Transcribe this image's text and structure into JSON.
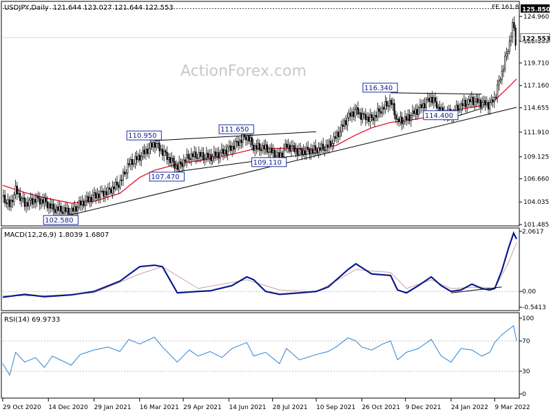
{
  "header": {
    "symbol": "USDJPY,Daily",
    "ohlc": "121.644 123.027 121.644 122.553",
    "fe_label": "FE 161.8"
  },
  "watermark": "ActionForex.com",
  "colors": {
    "candles": "#000000",
    "ma": "#e0102a",
    "macd": "#0a1a8c",
    "signal": "#c8a0a0",
    "rsi": "#2a80d0",
    "box_border": "#1a2a9c",
    "grid": "#808080"
  },
  "chart_data": [
    {
      "type": "candlestick",
      "title": "USDJPY,Daily",
      "yticks": [
        "124.960",
        "122.180",
        "119.710",
        "117.160",
        "114.655",
        "111.910",
        "109.125",
        "106.660",
        "104.035",
        "101.485"
      ],
      "ylim": [
        101.485,
        126.5
      ],
      "current_price": "122.553",
      "fe_level": "125.850",
      "xticks": [
        "29 Oct 2020",
        "14 Dec 2020",
        "29 Jan 2021",
        "16 Mar 2021",
        "29 Apr 2021",
        "14 Jun 2021",
        "28 Jul 2021",
        "10 Sep 2021",
        "26 Oct 2021",
        "9 Dec 2021",
        "24 Jan 2022",
        "9 Mar 2022"
      ],
      "annotations": [
        {
          "label": "102.580",
          "x": "2021-01-06",
          "y": 102.58
        },
        {
          "label": "110.950",
          "x": "2021-03-31",
          "y": 110.95
        },
        {
          "label": "107.470",
          "x": "2021-04-23",
          "y": 107.47
        },
        {
          "label": "111.650",
          "x": "2021-07-02",
          "y": 111.65
        },
        {
          "label": "109.110",
          "x": "2021-08-04",
          "y": 109.11
        },
        {
          "label": "116.340",
          "x": "2021-11-24",
          "y": 116.34
        },
        {
          "label": "114.400",
          "x": "2022-01-24",
          "y": 114.4
        }
      ],
      "close_path": [
        [
          "2020-10-29",
          104.6
        ],
        [
          "2020-11-05",
          103.6
        ],
        [
          "2020-11-11",
          105.4
        ],
        [
          "2020-11-20",
          103.8
        ],
        [
          "2020-12-01",
          104.3
        ],
        [
          "2020-12-10",
          104.1
        ],
        [
          "2020-12-18",
          103.3
        ],
        [
          "2021-01-06",
          102.9
        ],
        [
          "2021-01-15",
          103.8
        ],
        [
          "2021-01-29",
          104.7
        ],
        [
          "2021-02-12",
          105.2
        ],
        [
          "2021-02-24",
          106.2
        ],
        [
          "2021-03-05",
          108.3
        ],
        [
          "2021-03-16",
          109.1
        ],
        [
          "2021-03-31",
          110.7
        ],
        [
          "2021-04-08",
          109.7
        ],
        [
          "2021-04-23",
          107.9
        ],
        [
          "2021-05-05",
          109.2
        ],
        [
          "2021-05-14",
          109.3
        ],
        [
          "2021-05-26",
          109.1
        ],
        [
          "2021-06-07",
          109.6
        ],
        [
          "2021-06-17",
          110.2
        ],
        [
          "2021-07-02",
          111.5
        ],
        [
          "2021-07-09",
          110.2
        ],
        [
          "2021-07-21",
          110.1
        ],
        [
          "2021-08-04",
          109.1
        ],
        [
          "2021-08-11",
          110.4
        ],
        [
          "2021-08-24",
          109.7
        ],
        [
          "2021-09-10",
          109.9
        ],
        [
          "2021-09-22",
          110.3
        ],
        [
          "2021-09-30",
          111.4
        ],
        [
          "2021-10-12",
          113.6
        ],
        [
          "2021-10-20",
          114.4
        ],
        [
          "2021-10-26",
          113.7
        ],
        [
          "2021-11-05",
          113.4
        ],
        [
          "2021-11-16",
          114.6
        ],
        [
          "2021-11-24",
          115.4
        ],
        [
          "2021-12-01",
          113.1
        ],
        [
          "2021-12-10",
          113.4
        ],
        [
          "2021-12-22",
          114.5
        ],
        [
          "2022-01-04",
          115.8
        ],
        [
          "2022-01-14",
          114.2
        ],
        [
          "2022-01-24",
          113.9
        ],
        [
          "2022-02-03",
          114.9
        ],
        [
          "2022-02-14",
          115.5
        ],
        [
          "2022-02-24",
          115.2
        ],
        [
          "2022-03-04",
          115.0
        ],
        [
          "2022-03-09",
          115.8
        ],
        [
          "2022-03-16",
          118.6
        ],
        [
          "2022-03-23",
          121.6
        ],
        [
          "2022-03-28",
          124.3
        ],
        [
          "2022-03-30",
          122.0
        ],
        [
          "2022-03-31",
          122.5
        ]
      ],
      "ma_path": [
        [
          "2020-10-29",
          105.9
        ],
        [
          "2020-11-20",
          105.1
        ],
        [
          "2020-12-10",
          104.5
        ],
        [
          "2021-01-06",
          103.9
        ],
        [
          "2021-01-29",
          104.1
        ],
        [
          "2021-02-24",
          105.0
        ],
        [
          "2021-03-16",
          106.8
        ],
        [
          "2021-03-31",
          107.6
        ],
        [
          "2021-04-23",
          108.3
        ],
        [
          "2021-05-26",
          108.9
        ],
        [
          "2021-06-17",
          109.4
        ],
        [
          "2021-07-09",
          110.0
        ],
        [
          "2021-08-11",
          110.1
        ],
        [
          "2021-09-10",
          110.0
        ],
        [
          "2021-09-30",
          110.4
        ],
        [
          "2021-10-20",
          111.6
        ],
        [
          "2021-11-05",
          112.4
        ],
        [
          "2021-11-24",
          113.0
        ],
        [
          "2021-12-22",
          113.4
        ],
        [
          "2022-01-24",
          114.3
        ],
        [
          "2022-02-24",
          114.9
        ],
        [
          "2022-03-09",
          115.5
        ],
        [
          "2022-03-23",
          117.0
        ],
        [
          "2022-03-31",
          117.9
        ]
      ],
      "trendlines": [
        {
          "name": "lower-support",
          "from": [
            "2021-01-06",
            102.58
          ],
          "to": [
            "2022-03-31",
            114.7
          ]
        },
        {
          "name": "upper-wedge",
          "from": [
            "2021-03-31",
            110.95
          ],
          "to": [
            "2021-09-10",
            111.95
          ]
        },
        {
          "name": "lower-wedge",
          "from": [
            "2021-04-23",
            107.47
          ],
          "to": [
            "2021-09-10",
            109.55
          ]
        },
        {
          "name": "triangle-top",
          "from": [
            "2021-11-24",
            116.34
          ],
          "to": [
            "2022-02-24",
            116.2
          ]
        },
        {
          "name": "triangle-bottom",
          "from": [
            "2022-01-24",
            113.5
          ],
          "to": [
            "2022-02-24",
            114.6
          ]
        }
      ]
    },
    {
      "type": "line",
      "title": "MACD(12,26,9) 1.8039 1.6807",
      "yticks": [
        "2.0617",
        "0.00",
        "-0.5413"
      ],
      "ylim": [
        -0.5413,
        2.0617
      ],
      "series": [
        {
          "name": "MACD",
          "values": [
            [
              "2020-10-29",
              -0.2
            ],
            [
              "2020-11-20",
              -0.1
            ],
            [
              "2020-12-10",
              -0.18
            ],
            [
              "2021-01-06",
              -0.12
            ],
            [
              "2021-01-29",
              0.0
            ],
            [
              "2021-02-24",
              0.35
            ],
            [
              "2021-03-16",
              0.85
            ],
            [
              "2021-03-31",
              0.9
            ],
            [
              "2021-04-08",
              0.85
            ],
            [
              "2021-04-23",
              -0.05
            ],
            [
              "2021-05-14",
              0.0
            ],
            [
              "2021-05-26",
              0.02
            ],
            [
              "2021-06-17",
              0.2
            ],
            [
              "2021-07-02",
              0.5
            ],
            [
              "2021-07-09",
              0.4
            ],
            [
              "2021-07-21",
              0.0
            ],
            [
              "2021-08-04",
              -0.1
            ],
            [
              "2021-08-24",
              -0.05
            ],
            [
              "2021-09-10",
              0.0
            ],
            [
              "2021-09-22",
              0.15
            ],
            [
              "2021-10-12",
              0.75
            ],
            [
              "2021-10-20",
              0.95
            ],
            [
              "2021-11-05",
              0.6
            ],
            [
              "2021-11-24",
              0.55
            ],
            [
              "2021-12-01",
              0.05
            ],
            [
              "2021-12-10",
              -0.05
            ],
            [
              "2021-12-22",
              0.2
            ],
            [
              "2022-01-04",
              0.5
            ],
            [
              "2022-01-14",
              0.2
            ],
            [
              "2022-01-24",
              0.0
            ],
            [
              "2022-02-03",
              0.05
            ],
            [
              "2022-02-14",
              0.25
            ],
            [
              "2022-02-24",
              0.1
            ],
            [
              "2022-03-04",
              0.05
            ],
            [
              "2022-03-09",
              0.1
            ],
            [
              "2022-03-16",
              0.7
            ],
            [
              "2022-03-23",
              1.5
            ],
            [
              "2022-03-28",
              2.0
            ],
            [
              "2022-03-31",
              1.8
            ]
          ]
        },
        {
          "name": "Signal",
          "values": [
            [
              "2020-10-29",
              -0.15
            ],
            [
              "2020-12-10",
              -0.15
            ],
            [
              "2021-01-29",
              -0.05
            ],
            [
              "2021-03-16",
              0.6
            ],
            [
              "2021-04-08",
              0.85
            ],
            [
              "2021-05-14",
              0.1
            ],
            [
              "2021-07-02",
              0.4
            ],
            [
              "2021-08-04",
              0.05
            ],
            [
              "2021-09-10",
              -0.02
            ],
            [
              "2021-10-20",
              0.75
            ],
            [
              "2021-11-24",
              0.65
            ],
            [
              "2021-12-10",
              0.1
            ],
            [
              "2022-01-04",
              0.4
            ],
            [
              "2022-01-24",
              0.1
            ],
            [
              "2022-02-24",
              0.15
            ],
            [
              "2022-03-09",
              0.1
            ],
            [
              "2022-03-23",
              1.0
            ],
            [
              "2022-03-31",
              1.68
            ]
          ]
        }
      ],
      "trendline": {
        "from": [
          "2022-01-24",
          -0.05
        ],
        "to": [
          "2022-03-16",
          0.15
        ]
      }
    },
    {
      "type": "line",
      "title": "RSI(14) 69.9733",
      "yticks": [
        "100",
        "70",
        "30",
        "0"
      ],
      "ylim": [
        0,
        100
      ],
      "series": [
        {
          "name": "RSI",
          "values": [
            [
              "2020-10-29",
              40
            ],
            [
              "2020-11-05",
              25
            ],
            [
              "2020-11-11",
              55
            ],
            [
              "2020-11-20",
              42
            ],
            [
              "2020-12-01",
              48
            ],
            [
              "2020-12-10",
              35
            ],
            [
              "2020-12-18",
              50
            ],
            [
              "2021-01-06",
              38
            ],
            [
              "2021-01-15",
              52
            ],
            [
              "2021-01-29",
              58
            ],
            [
              "2021-02-12",
              62
            ],
            [
              "2021-02-24",
              56
            ],
            [
              "2021-03-05",
              72
            ],
            [
              "2021-03-16",
              66
            ],
            [
              "2021-03-31",
              75
            ],
            [
              "2021-04-08",
              62
            ],
            [
              "2021-04-23",
              42
            ],
            [
              "2021-05-05",
              58
            ],
            [
              "2021-05-14",
              50
            ],
            [
              "2021-05-26",
              56
            ],
            [
              "2021-06-07",
              48
            ],
            [
              "2021-06-17",
              60
            ],
            [
              "2021-07-02",
              68
            ],
            [
              "2021-07-09",
              50
            ],
            [
              "2021-07-21",
              55
            ],
            [
              "2021-08-04",
              40
            ],
            [
              "2021-08-11",
              60
            ],
            [
              "2021-08-24",
              45
            ],
            [
              "2021-09-10",
              52
            ],
            [
              "2021-09-22",
              56
            ],
            [
              "2021-09-30",
              62
            ],
            [
              "2021-10-12",
              74
            ],
            [
              "2021-10-20",
              70
            ],
            [
              "2021-10-26",
              62
            ],
            [
              "2021-11-05",
              58
            ],
            [
              "2021-11-16",
              66
            ],
            [
              "2021-11-24",
              70
            ],
            [
              "2021-12-01",
              45
            ],
            [
              "2021-12-10",
              55
            ],
            [
              "2021-12-22",
              60
            ],
            [
              "2022-01-04",
              72
            ],
            [
              "2022-01-14",
              50
            ],
            [
              "2022-01-24",
              42
            ],
            [
              "2022-02-03",
              60
            ],
            [
              "2022-02-14",
              58
            ],
            [
              "2022-02-24",
              50
            ],
            [
              "2022-03-04",
              55
            ],
            [
              "2022-03-09",
              68
            ],
            [
              "2022-03-16",
              78
            ],
            [
              "2022-03-23",
              85
            ],
            [
              "2022-03-28",
              90
            ],
            [
              "2022-03-31",
              70
            ]
          ]
        }
      ]
    }
  ]
}
